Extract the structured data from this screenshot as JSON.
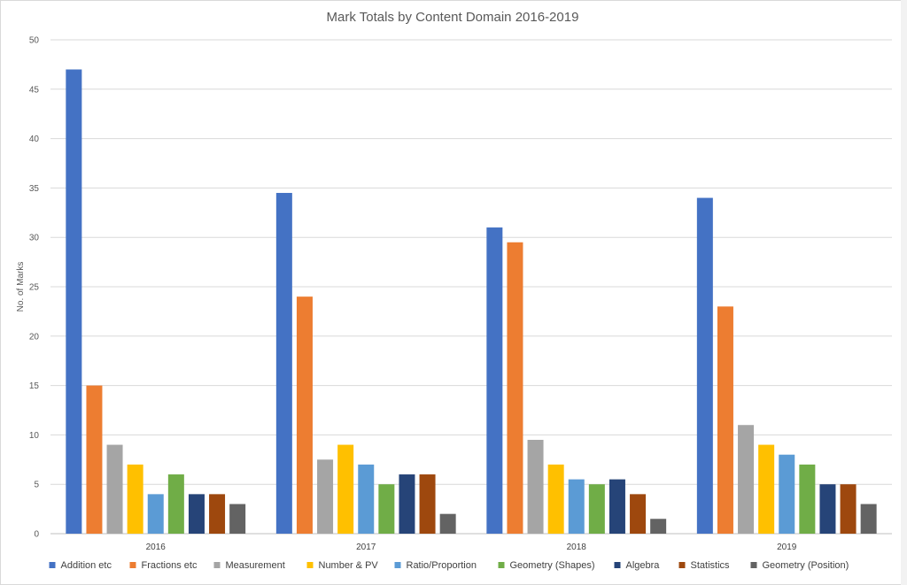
{
  "chart_data": {
    "type": "bar",
    "title": "Mark Totals by Content Domain 2016-2019",
    "xlabel": "",
    "ylabel": "No. of Marks",
    "ylim": [
      0,
      50
    ],
    "yticks": [
      0,
      5,
      10,
      15,
      20,
      25,
      30,
      35,
      40,
      45,
      50
    ],
    "grid": true,
    "legend_position": "bottom",
    "categories": [
      "2016",
      "2017",
      "2018",
      "2019"
    ],
    "series": [
      {
        "name": "Addition etc",
        "color": "#4472C4",
        "values": [
          47,
          34.5,
          31,
          34
        ]
      },
      {
        "name": "Fractions etc",
        "color": "#ED7D31",
        "values": [
          15,
          24,
          29.5,
          23
        ]
      },
      {
        "name": "Measurement",
        "color": "#A5A5A5",
        "values": [
          9,
          7.5,
          9.5,
          11
        ]
      },
      {
        "name": "Number & PV",
        "color": "#FFC000",
        "values": [
          7,
          9,
          7,
          9
        ]
      },
      {
        "name": "Ratio/Proportion",
        "color": "#5B9BD5",
        "values": [
          4,
          7,
          5.5,
          8
        ]
      },
      {
        "name": "Geometry (Shapes)",
        "color": "#70AD47",
        "values": [
          6,
          5,
          5,
          7
        ]
      },
      {
        "name": "Algebra",
        "color": "#264478",
        "values": [
          4,
          6,
          5.5,
          5
        ]
      },
      {
        "name": "Statistics",
        "color": "#9E480E",
        "values": [
          4,
          6,
          4,
          5
        ]
      },
      {
        "name": "Geometry (Position)",
        "color": "#636363",
        "values": [
          3,
          2,
          1.5,
          3
        ]
      }
    ]
  }
}
